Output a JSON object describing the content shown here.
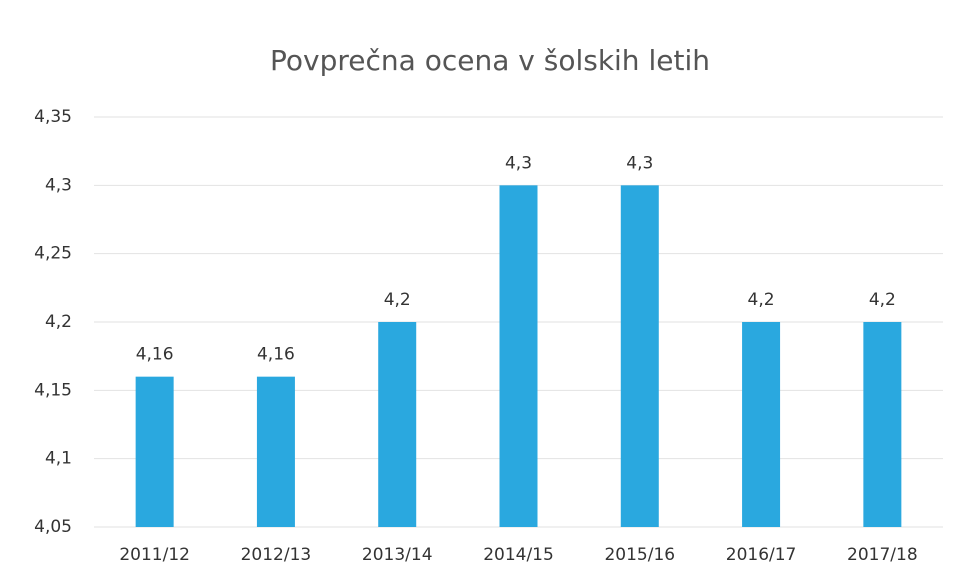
{
  "chart_data": {
    "type": "bar",
    "title": "Povprečna ocena v šolskih letih",
    "categories": [
      "2011/12",
      "2012/13",
      "2013/14",
      "2014/15",
      "2015/16",
      "2016/17",
      "2017/18"
    ],
    "values": [
      4.16,
      4.16,
      4.2,
      4.3,
      4.3,
      4.2,
      4.2
    ],
    "value_labels": [
      "4,16",
      "4,16",
      "4,2",
      "4,3",
      "4,3",
      "4,2",
      "4,2"
    ],
    "color": "#2aa8df",
    "ylim": [
      4.05,
      4.35
    ],
    "yticks": [
      {
        "value": 4.05,
        "label": "4,05"
      },
      {
        "value": 4.1,
        "label": "4,1"
      },
      {
        "value": 4.15,
        "label": "4,15"
      },
      {
        "value": 4.2,
        "label": "4,2"
      },
      {
        "value": 4.25,
        "label": "4,25"
      },
      {
        "value": 4.3,
        "label": "4,3"
      },
      {
        "value": 4.35,
        "label": "4,35"
      }
    ],
    "grid": true
  }
}
